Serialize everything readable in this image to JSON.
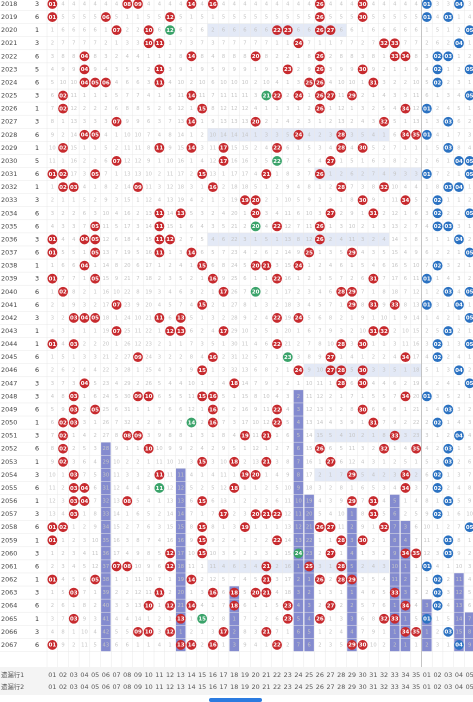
{
  "colors": {
    "red_ball": "#c72a2e",
    "blue_ball": "#2b72c2",
    "green_ball": "#3aa36a",
    "stat_bar": "#6f77c7",
    "highlight_band": "#dce4f4",
    "grid": "#e8e8e8",
    "miss_text": "#c5c5c5"
  },
  "rows": [
    {
      "period": "2018",
      "count": "3",
      "red": [
        1,
        8,
        9,
        14,
        16,
        26,
        30
      ],
      "blue": [
        1,
        4
      ]
    },
    {
      "period": "2019",
      "count": "6",
      "red": [
        1,
        6,
        12,
        26,
        30
      ],
      "blue": [
        1,
        3
      ]
    },
    {
      "period": "2020",
      "count": "1",
      "red": [
        7,
        10,
        12,
        22,
        23,
        26,
        27
      ],
      "blue": [
        5
      ]
    },
    {
      "period": "2021",
      "count": "3",
      "red": [
        10,
        11,
        24,
        32,
        33
      ],
      "blue": [
        4
      ]
    },
    {
      "period": "2022",
      "count": "6",
      "red": [
        4,
        14,
        20,
        26,
        33,
        34
      ],
      "blue": [
        2,
        3
      ]
    },
    {
      "period": "2023",
      "count": "5",
      "red": [
        4,
        11,
        23,
        26,
        30
      ],
      "blue": [
        2,
        5
      ]
    },
    {
      "period": "2024",
      "count": "6",
      "red": [
        4,
        5,
        6,
        11,
        25,
        26,
        31
      ],
      "blue": [
        2
      ]
    },
    {
      "period": "2025",
      "count": "3",
      "red": [
        2,
        14,
        21,
        22,
        24,
        26,
        27,
        29
      ],
      "blue": [
        5
      ]
    },
    {
      "period": "2026",
      "count": "1",
      "red": [
        2,
        15,
        26,
        34
      ],
      "blue": [
        1
      ]
    },
    {
      "period": "2027",
      "count": "3",
      "red": [
        7,
        14,
        20,
        32
      ],
      "blue": [
        3
      ]
    },
    {
      "period": "2028",
      "count": "6",
      "red": [
        4,
        5,
        24,
        28,
        34,
        35
      ],
      "blue": [
        1
      ]
    },
    {
      "period": "2029",
      "count": "1",
      "red": [
        2,
        11,
        14,
        17,
        22,
        28,
        30
      ],
      "blue": [
        3
      ]
    },
    {
      "period": "2030",
      "count": "5",
      "red": [
        7,
        17,
        22,
        27
      ],
      "blue": [
        4,
        5
      ]
    },
    {
      "period": "2031",
      "count": "6",
      "red": [
        1,
        2,
        5,
        15,
        21,
        26
      ],
      "blue": [
        1,
        5
      ]
    },
    {
      "period": "2032",
      "count": "1",
      "red": [
        2,
        3,
        9,
        16,
        28,
        32
      ],
      "blue": [
        3,
        4
      ]
    },
    {
      "period": "2033",
      "count": "3",
      "red": [
        19,
        20,
        30,
        34
      ],
      "blue": [
        2
      ]
    },
    {
      "period": "2034",
      "count": "6",
      "red": [
        11,
        13,
        20,
        27,
        31
      ],
      "blue": [
        2,
        5
      ]
    },
    {
      "period": "2035",
      "count": "6",
      "red": [
        5,
        11,
        20,
        22,
        26
      ],
      "blue": [
        2,
        3
      ]
    },
    {
      "period": "2036",
      "count": "3",
      "red": [
        1,
        4,
        5,
        11,
        12,
        26
      ],
      "blue": [
        4
      ]
    },
    {
      "period": "2037",
      "count": "6",
      "red": [
        1,
        5,
        11,
        14,
        25,
        29
      ],
      "blue": [
        5
      ]
    },
    {
      "period": "2038",
      "count": "1",
      "red": [
        4,
        15,
        20,
        21,
        24
      ],
      "blue": [
        2
      ]
    },
    {
      "period": "2039",
      "count": "3",
      "red": [
        1,
        5,
        16,
        22,
        31
      ],
      "blue": [
        1
      ]
    },
    {
      "period": "2040",
      "count": "6",
      "red": [
        2,
        17,
        20,
        28,
        29
      ],
      "blue": [
        3,
        5
      ]
    },
    {
      "period": "2041",
      "count": "6",
      "red": [
        7,
        15,
        29,
        31,
        33
      ],
      "blue": [
        1,
        4
      ]
    },
    {
      "period": "2042",
      "count": "3",
      "red": [
        3,
        4,
        5,
        11,
        13,
        22,
        24
      ],
      "blue": [
        5
      ]
    },
    {
      "period": "2043",
      "count": "1",
      "red": [
        7,
        12,
        13,
        17,
        31,
        32
      ],
      "blue": [
        3
      ]
    },
    {
      "period": "2044",
      "count": "1",
      "red": [
        1,
        3,
        22,
        28,
        30
      ],
      "blue": [
        2,
        5
      ]
    },
    {
      "period": "2045",
      "count": "6",
      "red": [
        9,
        16,
        23,
        27,
        34
      ],
      "blue": [
        2
      ]
    },
    {
      "period": "2046",
      "count": "6",
      "red": [
        15,
        24,
        27,
        28,
        30
      ],
      "blue": [
        4
      ]
    },
    {
      "period": "2047",
      "count": "3",
      "red": [
        4,
        18,
        28,
        30
      ],
      "blue": [
        5
      ]
    },
    {
      "period": "2048",
      "count": "3",
      "red": [
        3,
        9,
        10,
        15,
        16,
        34
      ],
      "blue": [
        1
      ]
    },
    {
      "period": "2049",
      "count": "6",
      "red": [
        3,
        5,
        16,
        22,
        30
      ],
      "blue": [
        3
      ]
    },
    {
      "period": "2050",
      "count": "1",
      "red": [
        2,
        3,
        14,
        16,
        22,
        31
      ],
      "blue": [
        2
      ]
    },
    {
      "period": "2051",
      "count": "3",
      "red": [
        2,
        8,
        9,
        19,
        21,
        33
      ],
      "blue": [
        4
      ]
    },
    {
      "period": "2052",
      "count": "6",
      "red": [
        2,
        10,
        26,
        32,
        35
      ],
      "blue": [
        3
      ]
    },
    {
      "period": "2053",
      "count": "1",
      "red": [
        2,
        15,
        18,
        21,
        27
      ],
      "blue": [
        3
      ]
    },
    {
      "period": "2054",
      "count": "3",
      "red": [
        3,
        11,
        19,
        20,
        29,
        34
      ],
      "blue": [
        2
      ]
    },
    {
      "period": "2055",
      "count": "6",
      "red": [
        3,
        4,
        11,
        18,
        34
      ],
      "blue": [
        2
      ]
    },
    {
      "period": "2056",
      "count": "1",
      "red": [
        3,
        4,
        8,
        15,
        29,
        31
      ],
      "blue": [
        3
      ]
    },
    {
      "period": "2057",
      "count": "3",
      "red": [
        3,
        17,
        20,
        21,
        22,
        31
      ],
      "blue": [
        2
      ]
    },
    {
      "period": "2058",
      "count": "6",
      "red": [
        1,
        2,
        15,
        19,
        26,
        27,
        32
      ],
      "blue": [
        5
      ]
    },
    {
      "period": "2059",
      "count": "1",
      "red": [
        1,
        15,
        22,
        28,
        30
      ],
      "blue": [
        3
      ]
    },
    {
      "period": "2060",
      "count": "3",
      "red": [
        12,
        15,
        24,
        27,
        34,
        35
      ],
      "blue": [
        3
      ]
    },
    {
      "period": "2061",
      "count": "6",
      "red": [
        7,
        8,
        12,
        21,
        25,
        28
      ],
      "blue": [
        1
      ]
    },
    {
      "period": "2062",
      "count": "1",
      "red": [
        1,
        5,
        14,
        21,
        26,
        28,
        29
      ],
      "blue": [
        2
      ]
    },
    {
      "period": "2063",
      "count": "3",
      "red": [
        3,
        11,
        16,
        18,
        20,
        21,
        33
      ],
      "blue": [
        2
      ]
    },
    {
      "period": "2064",
      "count": "6",
      "red": [
        10,
        12,
        14,
        18,
        23,
        27,
        34
      ],
      "blue": [
        2
      ]
    },
    {
      "period": "2065",
      "count": "1",
      "red": [
        3,
        13,
        15,
        23,
        26,
        32,
        33
      ],
      "blue": [
        1
      ]
    },
    {
      "period": "2066",
      "count": "3",
      "red": [
        9,
        10,
        12,
        17,
        21,
        34,
        35
      ],
      "blue": [
        3
      ]
    },
    {
      "period": "2067",
      "count": "6",
      "red": [
        1,
        13,
        14,
        16,
        22,
        29,
        30
      ],
      "blue": [
        4
      ]
    }
  ],
  "footer": {
    "row1_label": "遗漏行1",
    "row2_label": "遗漏行2",
    "red_numbers": [
      "01",
      "02",
      "03",
      "04",
      "05",
      "06",
      "07",
      "08",
      "09",
      "10",
      "11",
      "12",
      "13",
      "14",
      "15",
      "16",
      "17",
      "18",
      "19",
      "20",
      "21",
      "22",
      "23",
      "24",
      "25",
      "26",
      "27",
      "28",
      "29",
      "30",
      "31",
      "32",
      "33",
      "34",
      "35"
    ],
    "blue_numbers": [
      "01",
      "02",
      "03",
      "04",
      "05"
    ]
  }
}
